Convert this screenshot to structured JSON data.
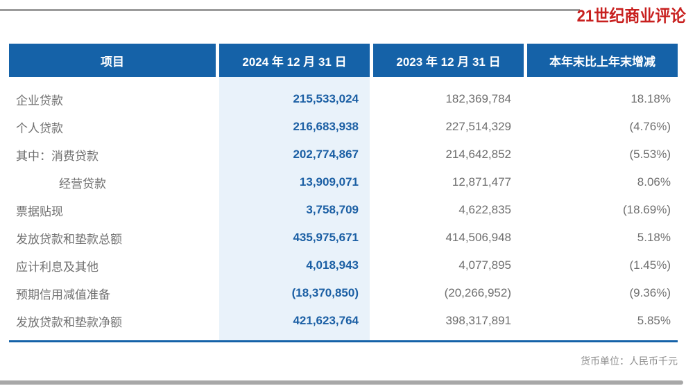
{
  "header": {
    "logo_text": "21世纪商业评论"
  },
  "table": {
    "columns": [
      "项目",
      "2024 年 12 月 31 日",
      "2023 年 12 月 31 日",
      "本年末比上年末增减"
    ],
    "rows": [
      {
        "label": "企业贷款",
        "indent": 0,
        "v2024": "215,533,024",
        "v2023": "182,369,784",
        "change": "18.18%"
      },
      {
        "label": "个人贷款",
        "indent": 0,
        "v2024": "216,683,938",
        "v2023": "227,514,329",
        "change": "(4.76%)"
      },
      {
        "label": "其中：消费贷款",
        "indent": 0,
        "v2024": "202,774,867",
        "v2023": "214,642,852",
        "change": "(5.53%)"
      },
      {
        "label": "经营贷款",
        "indent": 1,
        "v2024": "13,909,071",
        "v2023": "12,871,477",
        "change": "8.06%"
      },
      {
        "label": "票据贴现",
        "indent": 0,
        "v2024": "3,758,709",
        "v2023": "4,622,835",
        "change": "(18.69%)"
      },
      {
        "label": "发放贷款和垫款总额",
        "indent": 0,
        "v2024": "435,975,671",
        "v2023": "414,506,948",
        "change": "5.18%"
      },
      {
        "label": "应计利息及其他",
        "indent": 0,
        "v2024": "4,018,943",
        "v2023": "4,077,895",
        "change": "(1.45%)"
      },
      {
        "label": "预期信用减值准备",
        "indent": 0,
        "v2024": "(18,370,850)",
        "v2023": "(20,266,952)",
        "change": "(9.36%)"
      },
      {
        "label": "发放贷款和垫款净额",
        "indent": 0,
        "v2024": "421,623,764",
        "v2023": "398,317,891",
        "change": "5.85%"
      }
    ]
  },
  "footer": {
    "currency_note": "货币单位：人民币千元"
  },
  "colors": {
    "header_blue": "#1562a8",
    "value_blue": "#1b5fa4",
    "light_column_bg": "#e9f2fa",
    "logo_red": "#c8201f",
    "text_gray": "#6f6f6f"
  }
}
